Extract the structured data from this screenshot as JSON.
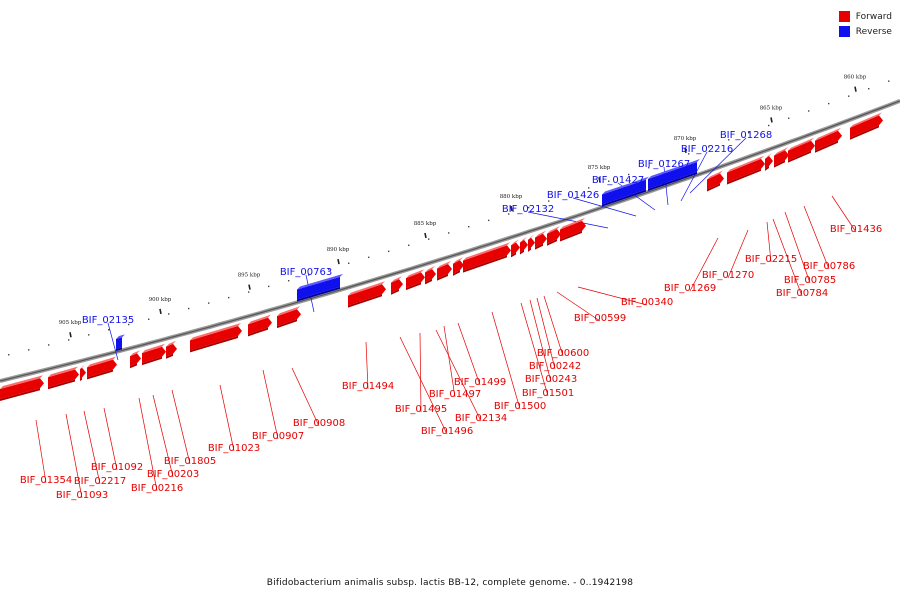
{
  "legend": {
    "forward_label": "Forward",
    "reverse_label": "Reverse",
    "forward_color": "#e60000",
    "reverse_color": "#1010ee"
  },
  "caption": "Bifidobacterium animalis subsp. lactis BB-12, complete genome. - 0..1942198",
  "ruler_labels": [
    "860 kbp",
    "865 kbp",
    "870 kbp",
    "875 kbp",
    "880 kbp",
    "885 kbp",
    "890 kbp",
    "895 kbp",
    "900 kbp",
    "905 kbp"
  ],
  "genes": [
    {
      "id": "BIF_01268",
      "strand": "reverse"
    },
    {
      "id": "BIF_02216",
      "strand": "reverse"
    },
    {
      "id": "BIF_01267",
      "strand": "reverse"
    },
    {
      "id": "BIF_01427",
      "strand": "reverse"
    },
    {
      "id": "BIF_01426",
      "strand": "reverse"
    },
    {
      "id": "BIF_02132",
      "strand": "reverse"
    },
    {
      "id": "BIF_00763",
      "strand": "reverse"
    },
    {
      "id": "BIF_02135",
      "strand": "reverse"
    },
    {
      "id": "BIF_01436",
      "strand": "forward"
    },
    {
      "id": "BIF_00786",
      "strand": "forward"
    },
    {
      "id": "BIF_00785",
      "strand": "forward"
    },
    {
      "id": "BIF_00784",
      "strand": "forward"
    },
    {
      "id": "BIF_02215",
      "strand": "forward"
    },
    {
      "id": "BIF_01270",
      "strand": "forward"
    },
    {
      "id": "BIF_01269",
      "strand": "forward"
    },
    {
      "id": "BIF_00340",
      "strand": "forward"
    },
    {
      "id": "BIF_00599",
      "strand": "forward"
    },
    {
      "id": "BIF_00600",
      "strand": "forward"
    },
    {
      "id": "BIF_00242",
      "strand": "forward"
    },
    {
      "id": "BIF_00243",
      "strand": "forward"
    },
    {
      "id": "BIF_01501",
      "strand": "forward"
    },
    {
      "id": "BIF_01500",
      "strand": "forward"
    },
    {
      "id": "BIF_01499",
      "strand": "forward"
    },
    {
      "id": "BIF_01497",
      "strand": "forward"
    },
    {
      "id": "BIF_02134",
      "strand": "forward"
    },
    {
      "id": "BIF_01495",
      "strand": "forward"
    },
    {
      "id": "BIF_01496",
      "strand": "forward"
    },
    {
      "id": "BIF_01494",
      "strand": "forward"
    },
    {
      "id": "BIF_00908",
      "strand": "forward"
    },
    {
      "id": "BIF_00907",
      "strand": "forward"
    },
    {
      "id": "BIF_01023",
      "strand": "forward"
    },
    {
      "id": "BIF_01805",
      "strand": "forward"
    },
    {
      "id": "BIF_00203",
      "strand": "forward"
    },
    {
      "id": "BIF_00216",
      "strand": "forward"
    },
    {
      "id": "BIF_01092",
      "strand": "forward"
    },
    {
      "id": "BIF_02217",
      "strand": "forward"
    },
    {
      "id": "BIF_01093",
      "strand": "forward"
    },
    {
      "id": "BIF_01354",
      "strand": "forward"
    }
  ]
}
